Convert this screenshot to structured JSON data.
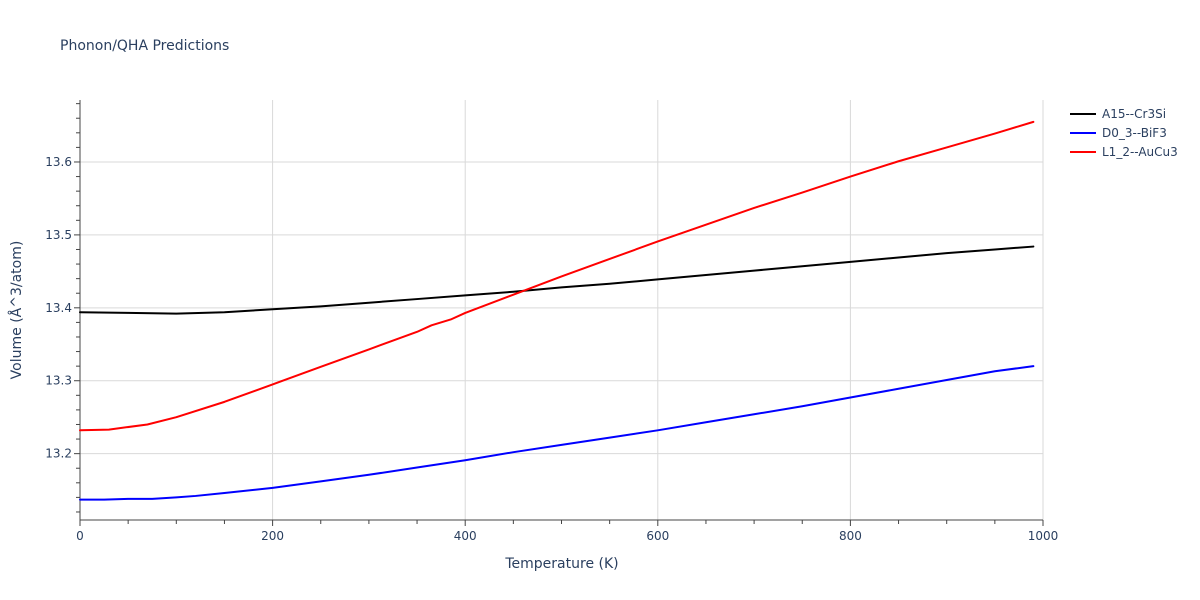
{
  "chart_data": {
    "type": "line",
    "title": "Phonon/QHA Predictions",
    "xlabel": "Temperature (K)",
    "ylabel": "Volume (Å^3/atom)",
    "xlim": [
      0,
      1000
    ],
    "ylim": [
      13.109,
      13.685
    ],
    "xticks": [
      0,
      200,
      400,
      600,
      800,
      1000
    ],
    "yticks": [
      13.2,
      13.3,
      13.4,
      13.5,
      13.6
    ],
    "grid": true,
    "legend": "top-right",
    "series": [
      {
        "name": "A15--Cr3Si",
        "color": "#000000",
        "x": [
          0,
          50,
          100,
          150,
          200,
          250,
          300,
          350,
          400,
          450,
          500,
          550,
          600,
          650,
          700,
          750,
          800,
          850,
          900,
          950,
          990
        ],
        "y": [
          13.394,
          13.393,
          13.392,
          13.394,
          13.398,
          13.402,
          13.407,
          13.412,
          13.417,
          13.422,
          13.428,
          13.433,
          13.439,
          13.445,
          13.451,
          13.457,
          13.463,
          13.469,
          13.475,
          13.48,
          13.484
        ]
      },
      {
        "name": "D0_3--BiF3",
        "color": "#0000ff",
        "x": [
          0,
          25,
          50,
          75,
          100,
          120,
          150,
          200,
          250,
          300,
          350,
          400,
          450,
          500,
          550,
          600,
          650,
          700,
          750,
          800,
          850,
          900,
          950,
          990
        ],
        "y": [
          13.137,
          13.137,
          13.138,
          13.138,
          13.14,
          13.142,
          13.146,
          13.153,
          13.162,
          13.171,
          13.181,
          13.191,
          13.202,
          13.212,
          13.222,
          13.232,
          13.243,
          13.254,
          13.265,
          13.277,
          13.289,
          13.301,
          13.313,
          13.32
        ]
      },
      {
        "name": "L1_2--AuCu3",
        "color": "#ff0000",
        "x": [
          0,
          30,
          70,
          100,
          150,
          200,
          250,
          300,
          350,
          365,
          385,
          400,
          450,
          500,
          550,
          600,
          650,
          700,
          750,
          800,
          850,
          900,
          950,
          990
        ],
        "y": [
          13.232,
          13.233,
          13.24,
          13.25,
          13.271,
          13.295,
          13.319,
          13.343,
          13.367,
          13.376,
          13.384,
          13.393,
          13.418,
          13.443,
          13.467,
          13.491,
          13.514,
          13.537,
          13.558,
          13.58,
          13.601,
          13.62,
          13.639,
          13.655
        ]
      }
    ]
  }
}
